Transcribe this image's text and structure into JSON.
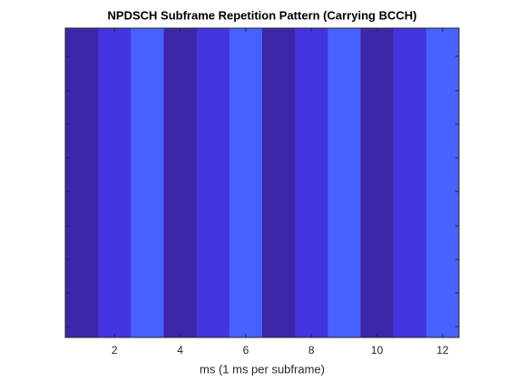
{
  "chart_data": {
    "type": "heatmap",
    "title": "NPDSCH Subframe Repetition Pattern (Carrying BCCH)",
    "xlabel": "ms (1 ms per subframe)",
    "x": [
      1,
      2,
      3,
      4,
      5,
      6,
      7,
      8,
      9,
      10,
      11,
      12
    ],
    "values": [
      1,
      2,
      3,
      1,
      2,
      3,
      1,
      2,
      3,
      1,
      2,
      3
    ],
    "colormap": [
      "#3e26a8",
      "#4335dd",
      "#4661fe"
    ],
    "clim": [
      1,
      3
    ],
    "xlim": [
      0.5,
      12.5
    ],
    "xticks": [
      2,
      4,
      6,
      8,
      10,
      12
    ]
  }
}
